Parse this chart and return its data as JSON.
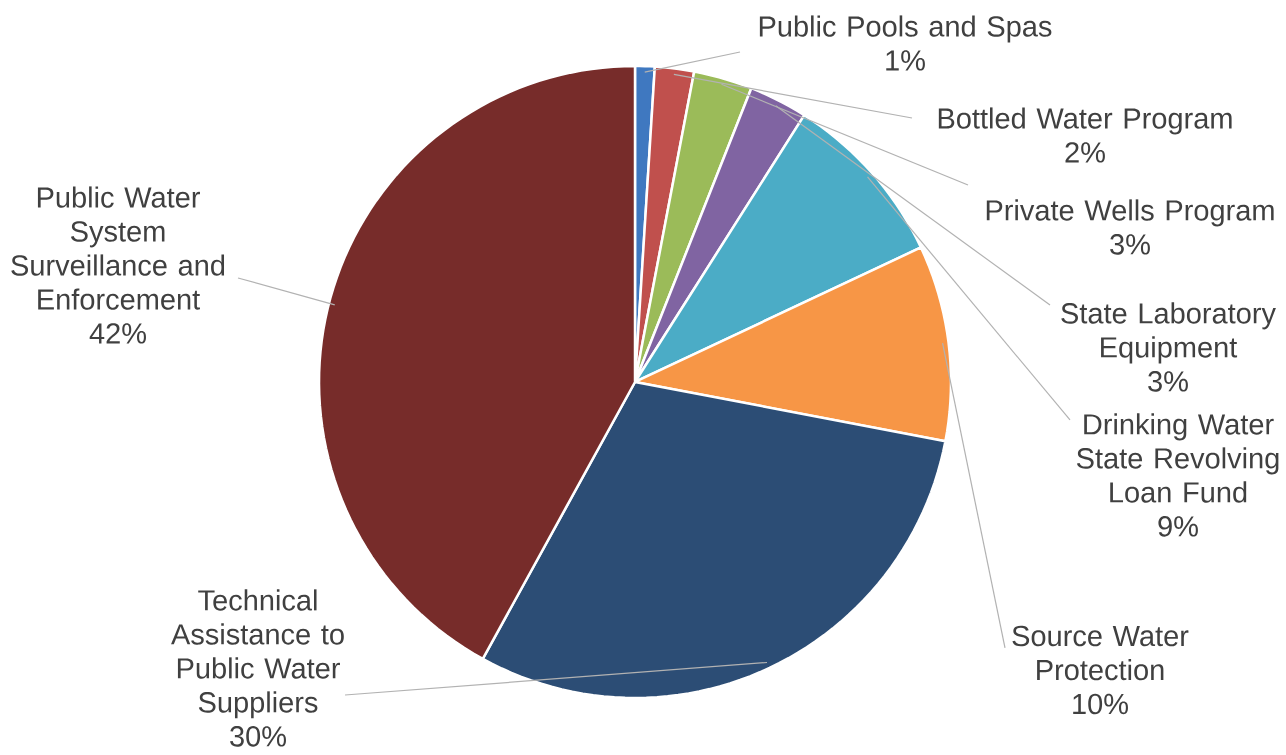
{
  "chart_data": {
    "type": "pie",
    "categories": [
      "Public Pools and Spas",
      "Bottled Water Program",
      "Private Wells Program",
      "State Laboratory Equipment",
      "Drinking Water State Revolving Loan Fund",
      "Source Water Protection",
      "Technical Assistance to Public Water Suppliers",
      "Public Water System Surveillance and Enforcement"
    ],
    "values": [
      1,
      2,
      3,
      3,
      9,
      10,
      30,
      42
    ],
    "value_labels": [
      "1%",
      "2%",
      "3%",
      "3%",
      "9%",
      "10%",
      "30%",
      "42%"
    ],
    "colors": [
      "#3f78c0",
      "#c0504d",
      "#9bbb59",
      "#8064a2",
      "#4bacc6",
      "#f79646",
      "#2c4d75",
      "#772c2a"
    ]
  }
}
